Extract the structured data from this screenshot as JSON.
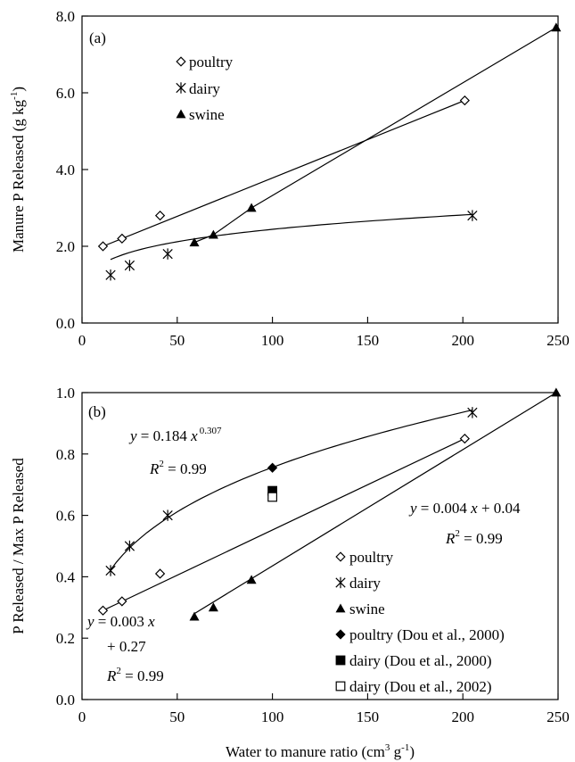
{
  "chart_data": [
    {
      "panel_label": "(a)",
      "type": "scatter",
      "ylabel": "Manure P Released (g kg",
      "ylabel_sup": "-1",
      "ylabel_close": ")",
      "xlim": [
        0,
        250
      ],
      "ylim": [
        0.0,
        8.0
      ],
      "x_ticks": [
        "0",
        "50",
        "100",
        "150",
        "200",
        "250"
      ],
      "y_ticks": [
        "0.0",
        "2.0",
        "4.0",
        "6.0",
        "8.0"
      ],
      "legend_placement": "top-left",
      "series": [
        {
          "name": "poultry",
          "marker": "diamond-open",
          "x": [
            11,
            21,
            41,
            201
          ],
          "y": [
            2.0,
            2.2,
            2.8,
            5.8
          ],
          "fit": {
            "kind": "linear",
            "x": [
              11,
              201
            ],
            "y": [
              2.0,
              5.8
            ]
          }
        },
        {
          "name": "dairy",
          "marker": "asterisk",
          "x": [
            15,
            25,
            45,
            205
          ],
          "y": [
            1.25,
            1.5,
            1.8,
            2.8
          ],
          "fit": {
            "kind": "power",
            "a": 0.95,
            "b": 0.205,
            "from": 15,
            "to": 205
          }
        },
        {
          "name": "swine",
          "marker": "triangle",
          "x": [
            59,
            69,
            89,
            249
          ],
          "y": [
            2.1,
            2.3,
            3.0,
            7.7
          ],
          "fit": {
            "kind": "polyline",
            "x": [
              59,
              69,
              89,
              249
            ],
            "y": [
              2.1,
              2.3,
              3.0,
              7.7
            ]
          }
        }
      ]
    },
    {
      "panel_label": "(b)",
      "type": "scatter",
      "ylabel": "P Released / Max P Released",
      "xlabel": "Water to manure ratio (cm",
      "xlabel_sup1": "3",
      "xlabel_mid": " g",
      "xlabel_sup2": "-1",
      "xlabel_close": ")",
      "xlim": [
        0,
        250
      ],
      "ylim": [
        0.0,
        1.0
      ],
      "x_ticks": [
        "0",
        "50",
        "100",
        "150",
        "200",
        "250"
      ],
      "y_ticks": [
        "0.0",
        "0.2",
        "0.4",
        "0.6",
        "0.8",
        "1.0"
      ],
      "legend_placement": "bottom-right",
      "series": [
        {
          "name": "poultry",
          "marker": "diamond-open",
          "x": [
            11,
            21,
            41,
            201
          ],
          "y": [
            0.29,
            0.32,
            0.41,
            0.85
          ],
          "fit": {
            "kind": "linear",
            "x": [
              11,
              201
            ],
            "y": [
              0.29,
              0.85
            ]
          }
        },
        {
          "name": "dairy",
          "marker": "asterisk",
          "x": [
            15,
            25,
            45,
            205
          ],
          "y": [
            0.42,
            0.5,
            0.6,
            0.935
          ],
          "fit": {
            "kind": "power",
            "a": 0.184,
            "b": 0.307,
            "from": 15,
            "to": 205
          }
        },
        {
          "name": "swine",
          "marker": "triangle",
          "x": [
            59,
            69,
            89,
            249
          ],
          "y": [
            0.27,
            0.3,
            0.39,
            1.0
          ],
          "fit": {
            "kind": "linear",
            "x": [
              59,
              249
            ],
            "y": [
              0.28,
              1.0
            ]
          }
        },
        {
          "name": "poultry (Dou et al., 2000)",
          "marker": "diamond-filled",
          "x": [
            100
          ],
          "y": [
            0.755
          ]
        },
        {
          "name": "dairy (Dou et al., 2000)",
          "marker": "square-filled",
          "x": [
            100
          ],
          "y": [
            0.68
          ]
        },
        {
          "name": "dairy (Dou et al., 2002)",
          "marker": "square-open",
          "x": [
            100
          ],
          "y": [
            0.66
          ]
        }
      ],
      "annotations": {
        "power_eq": {
          "y": "y",
          "eq": " = 0.184 ",
          "x": "x",
          "exp": "0.307"
        },
        "power_r2": {
          "r": "R",
          "sup": "2",
          "val": " = 0.99"
        },
        "swine_eq": {
          "y": "y",
          "eq": " = 0.004 ",
          "x": "x",
          "tail": " + 0.04"
        },
        "swine_r2": {
          "r": "R",
          "sup": "2",
          "val": " = 0.99"
        },
        "poultry_eq": {
          "y": "y",
          "eq": " = 0.003 ",
          "x": "x"
        },
        "poultry_eq2": "+ 0.27",
        "poultry_r2": {
          "r": "R",
          "sup": "2",
          "val": " = 0.99"
        }
      }
    }
  ]
}
